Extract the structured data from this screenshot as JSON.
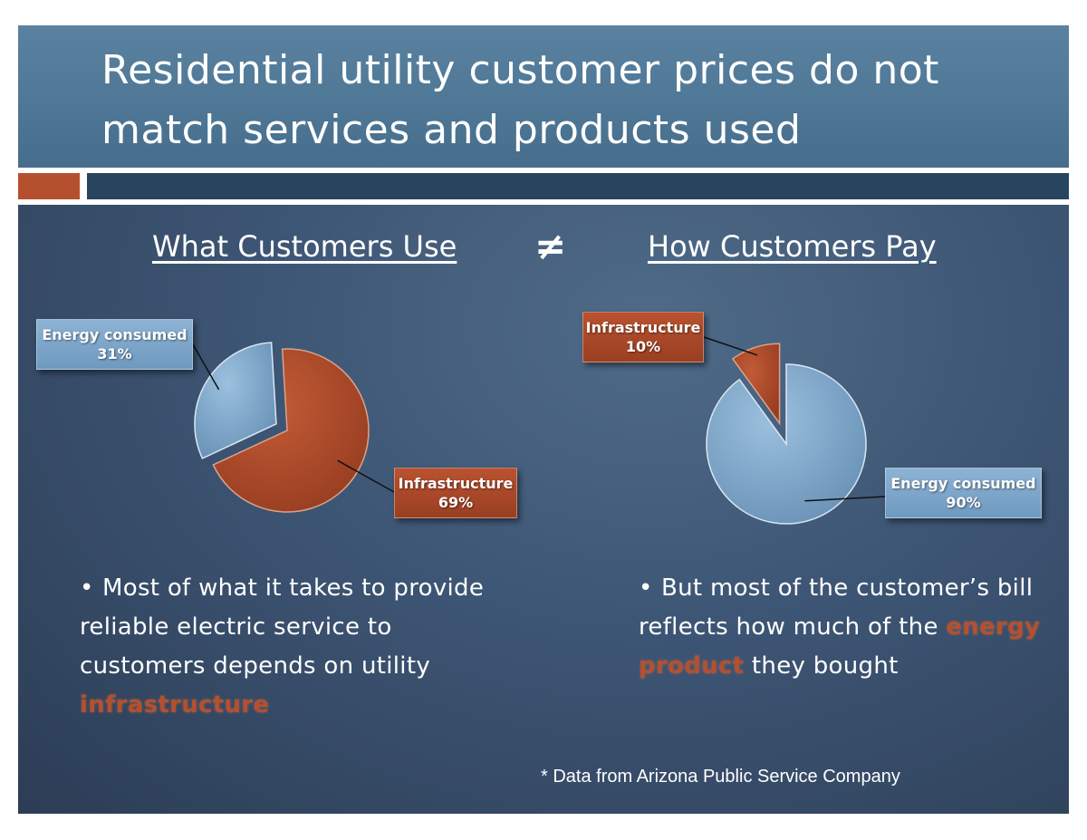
{
  "slide": {
    "title": "Residential utility customer prices do not match services and products used",
    "not_equal_symbol": "≠",
    "footnote": "* Data from Arizona Public Service Company",
    "bullets": {
      "left": {
        "before": "Most of what it takes to provide reliable electric service to customers depends on utility ",
        "highlight": "infrastructure",
        "after": ""
      },
      "right": {
        "before": "But most of the customer’s bill reflects how much of the ",
        "highlight": "energy product",
        "after": " they bought"
      }
    },
    "colors": {
      "infrastructure": "#b5502e",
      "energy": "#7ea6c9"
    }
  },
  "chart_data": [
    {
      "type": "pie",
      "title": "What Customers Use",
      "slices": [
        {
          "label": "Energy consumed",
          "value": 31,
          "display": "31%",
          "color": "#7ea6c9"
        },
        {
          "label": "Infrastructure",
          "value": 69,
          "display": "69%",
          "color": "#b5502e"
        }
      ]
    },
    {
      "type": "pie",
      "title": "How Customers Pay",
      "slices": [
        {
          "label": "Infrastructure",
          "value": 10,
          "display": "10%",
          "color": "#b5502e"
        },
        {
          "label": "Energy consumed",
          "value": 90,
          "display": "90%",
          "color": "#7ea6c9"
        }
      ]
    }
  ]
}
